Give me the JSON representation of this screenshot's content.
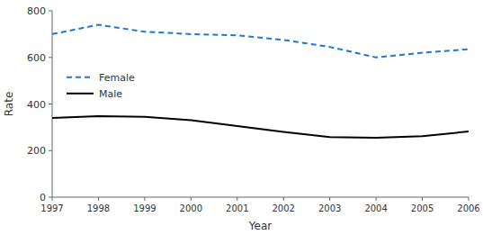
{
  "chart_data": {
    "type": "line",
    "x": [
      1997,
      1998,
      1999,
      2000,
      2001,
      2002,
      2003,
      2004,
      2005,
      2006
    ],
    "series": [
      {
        "name": "Female",
        "color": "#1f78d1",
        "line_style": "dashed",
        "values": [
          700,
          740,
          710,
          700,
          695,
          675,
          645,
          600,
          620,
          635
        ]
      },
      {
        "name": "Male",
        "color": "#000000",
        "line_style": "solid",
        "values": [
          340,
          348,
          345,
          330,
          305,
          280,
          258,
          255,
          262,
          282
        ]
      }
    ],
    "x_label": "Year",
    "y_label": "Rate",
    "xlim": [
      1997,
      2006
    ],
    "xticks": [
      1997,
      1998,
      1999,
      2000,
      2001,
      2002,
      2003,
      2004,
      2005,
      2006
    ],
    "ylim": [
      0,
      800
    ],
    "yticks": [
      0,
      200,
      400,
      600,
      800
    ],
    "grid": false,
    "legend": "center left"
  }
}
